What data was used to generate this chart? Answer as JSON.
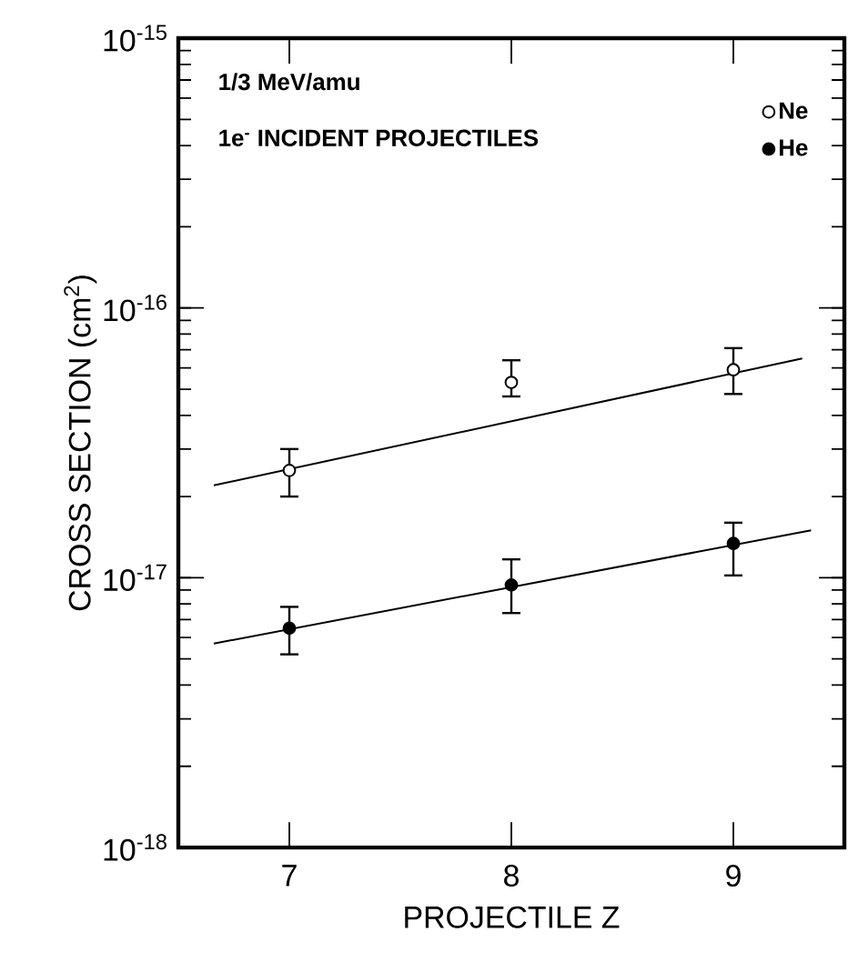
{
  "chart_data": {
    "type": "scatter",
    "xlabel": "PROJECTILE    Z",
    "ylabel": "CROSS SECTION  (cm$^{2}$)",
    "annotations": [
      "1/3 MeV/amu",
      "1e$^{-}$ INCIDENT PROJECTILES"
    ],
    "log": "y",
    "xlim": [
      6.5,
      9.5
    ],
    "ylim": [
      1e-18,
      1e-15
    ],
    "xticks": [
      7,
      8,
      9
    ],
    "yticks": [
      {
        "value": 1e-18,
        "label": "10$^{-18}$"
      },
      {
        "value": 1e-17,
        "label": "10$^{-17}$"
      },
      {
        "value": 1e-16,
        "label": "10$^{-16}$"
      },
      {
        "value": 1e-15,
        "label": "10$^{-15}$"
      }
    ],
    "legend": "top right",
    "marker": "circle",
    "series": [
      {
        "name": "Ne",
        "color": "#ffffff",
        "x": [
          7,
          8,
          9
        ],
        "values": [
          2.5e-17,
          5.3e-17,
          5.9e-17
        ],
        "errors": [
          [
            2e-17,
            3e-17
          ],
          [
            4.7e-17,
            6.4e-17
          ],
          [
            4.8e-17,
            7.1e-17
          ]
        ]
      },
      {
        "name": "He",
        "color": "#000000",
        "x": [
          7,
          8,
          9
        ],
        "values": [
          6.5e-18,
          9.4e-18,
          1.34e-17
        ],
        "errors": [
          [
            5.2e-18,
            7.8e-18
          ],
          [
            7.4e-18,
            1.17e-17
          ],
          [
            1.02e-17,
            1.6e-17
          ]
        ]
      },
      {
        "type": "line",
        "color": "#000000",
        "marker": "none",
        "x": [
          6.66,
          9.31
        ],
        "values": [
          2.2e-17,
          6.5e-17
        ]
      },
      {
        "type": "line",
        "color": "#000000",
        "marker": "none",
        "x": [
          6.66,
          9.35
        ],
        "values": [
          5.7e-18,
          1.5e-17
        ]
      }
    ]
  }
}
